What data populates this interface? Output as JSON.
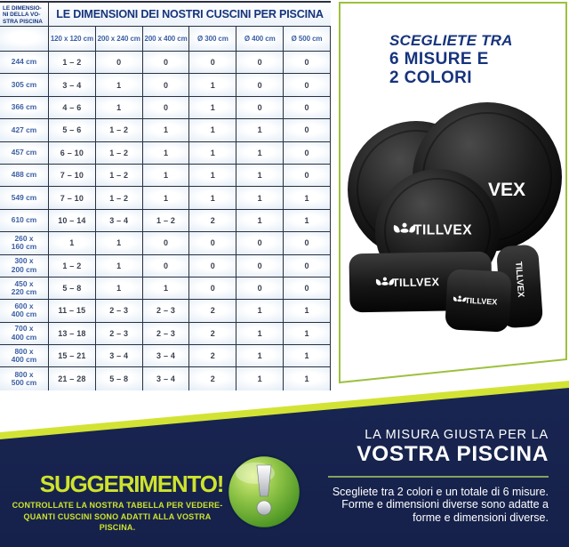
{
  "table": {
    "corner_label": "LE DIMENSIO-\nNI DELLA VO-\nSTRA PISCINA",
    "title": "LE DIMENSIONI DEI NOSTRI CUSCINI PER PISCINA",
    "columns": [
      "120 x 120 cm",
      "200 x 240 cm",
      "200 x 400 cm",
      "Ø 300 cm",
      "Ø 400 cm",
      "Ø 500 cm"
    ],
    "rows": [
      {
        "label": "244 cm",
        "values": [
          "1 – 2",
          "0",
          "0",
          "0",
          "0",
          "0"
        ]
      },
      {
        "label": "305 cm",
        "values": [
          "3 – 4",
          "1",
          "0",
          "1",
          "0",
          "0"
        ]
      },
      {
        "label": "366 cm",
        "values": [
          "4 – 6",
          "1",
          "0",
          "1",
          "0",
          "0"
        ]
      },
      {
        "label": "427 cm",
        "values": [
          "5 – 6",
          "1 – 2",
          "1",
          "1",
          "1",
          "0"
        ]
      },
      {
        "label": "457 cm",
        "values": [
          "6 – 10",
          "1 – 2",
          "1",
          "1",
          "1",
          "0"
        ]
      },
      {
        "label": "488 cm",
        "values": [
          "7 – 10",
          "1 – 2",
          "1",
          "1",
          "1",
          "0"
        ]
      },
      {
        "label": "549 cm",
        "values": [
          "7 – 10",
          "1 – 2",
          "1",
          "1",
          "1",
          "1"
        ]
      },
      {
        "label": "610 cm",
        "values": [
          "10 – 14",
          "3 – 4",
          "1 – 2",
          "2",
          "1",
          "1"
        ]
      },
      {
        "label": "260 x\n160 cm",
        "values": [
          "1",
          "1",
          "0",
          "0",
          "0",
          "0"
        ]
      },
      {
        "label": "300 x\n200 cm",
        "values": [
          "1 – 2",
          "1",
          "0",
          "0",
          "0",
          "0"
        ]
      },
      {
        "label": "450 x\n220 cm",
        "values": [
          "5 – 8",
          "1",
          "1",
          "0",
          "0",
          "0"
        ]
      },
      {
        "label": "600 x\n400 cm",
        "values": [
          "11 – 15",
          "2 – 3",
          "2 – 3",
          "2",
          "1",
          "1"
        ]
      },
      {
        "label": "700 x\n400 cm",
        "values": [
          "13 – 18",
          "2 – 3",
          "2 – 3",
          "2",
          "1",
          "1"
        ]
      },
      {
        "label": "800 x\n400 cm",
        "values": [
          "15 – 21",
          "3 – 4",
          "3 – 4",
          "2",
          "1",
          "1"
        ]
      },
      {
        "label": "800 x\n500 cm",
        "values": [
          "21 – 28",
          "5 – 8",
          "3 – 4",
          "2",
          "1",
          "1"
        ]
      }
    ]
  },
  "panel": {
    "headline_line1": "SCEGLIETE TRA",
    "headline_line2": "6 MISURE E",
    "headline_line3": "2 COLORI",
    "brand": "TILLVEX",
    "brand_partial": "VEX"
  },
  "tip": {
    "title": "SUGGERIMENTO!",
    "body": "CONTROLLATE LA NOSTRA TABELLA PER VEDERE-\nQUANTI CUSCINI SONO ADATTI ALLA VOSTRA PISCINA."
  },
  "bottom_right": {
    "heading_line1": "LA MISURA GIUSTA PER LA",
    "heading_line2": "VOSTRA PISCINA",
    "body": "Scegliete tra 2 colori e un totale di 6 misure.\nForme e dimensioni diverse sono adatte a\nforme e dimensioni diverse."
  },
  "colors": {
    "navy": "#1b2855",
    "lime": "#d3e335",
    "title_blue": "#16347c",
    "label_blue": "#3a5fa5",
    "olive_border": "#9cc13e",
    "sage_line": "#85a35c",
    "cushion_black": "#111111"
  }
}
